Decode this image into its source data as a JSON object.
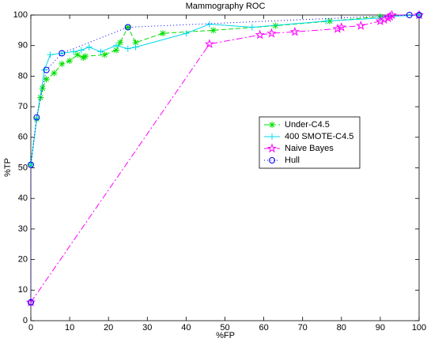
{
  "chart_data": {
    "type": "line",
    "title": "Mammography ROC",
    "x_label": "%FP",
    "y_label": "%TP",
    "xlim": [
      0,
      100
    ],
    "ylim": [
      0,
      100
    ],
    "xticks": [
      0,
      10,
      20,
      30,
      40,
      50,
      60,
      70,
      80,
      90,
      100
    ],
    "yticks": [
      0,
      10,
      20,
      30,
      40,
      50,
      60,
      70,
      80,
      90,
      100
    ],
    "legend_position": "right",
    "series": [
      {
        "name": "Under-C4.5",
        "color": "#00e000",
        "marker": "asterisk",
        "dash": "6,3",
        "x": [
          0,
          1.5,
          2.5,
          3,
          4,
          6,
          8,
          10,
          12,
          13.5,
          14,
          19,
          22,
          23,
          25,
          27,
          34,
          47,
          63,
          77,
          90,
          100
        ],
        "values": [
          51,
          66,
          73,
          76,
          79,
          81,
          84,
          85,
          87,
          86,
          86.5,
          87,
          88.5,
          91,
          96,
          91,
          94,
          95,
          96.5,
          98,
          99.5,
          100
        ]
      },
      {
        "name": "400 SMOTE-C4.5",
        "color": "#00d8e8",
        "marker": "plus",
        "dash": "",
        "x": [
          0,
          1.5,
          3.5,
          5,
          8,
          11,
          13,
          15,
          18,
          22,
          25,
          27,
          40,
          46,
          57,
          76,
          90,
          92,
          100
        ],
        "values": [
          51,
          66,
          82,
          87,
          87.5,
          88,
          88.5,
          89.5,
          88,
          90,
          89,
          89.5,
          94,
          97,
          96,
          98,
          99,
          99.5,
          100
        ]
      },
      {
        "name": "Naive Bayes",
        "color": "#ff00ff",
        "marker": "star",
        "dash": "8,3,2,3",
        "x": [
          0,
          46,
          59,
          62,
          68,
          79,
          80,
          85,
          90,
          91,
          92,
          92.5,
          93,
          100
        ],
        "values": [
          6,
          90.5,
          93.5,
          94,
          94.5,
          95.5,
          96,
          96.5,
          98,
          98.5,
          99,
          99.5,
          100,
          100
        ]
      },
      {
        "name": "Hull",
        "color": "#0000ff",
        "marker": "circle",
        "dash": "1,3",
        "x": [
          0,
          0,
          1.5,
          4,
          8,
          25,
          97.5,
          100
        ],
        "values": [
          6,
          51,
          66.5,
          82,
          87.5,
          96,
          100,
          100
        ]
      }
    ]
  }
}
